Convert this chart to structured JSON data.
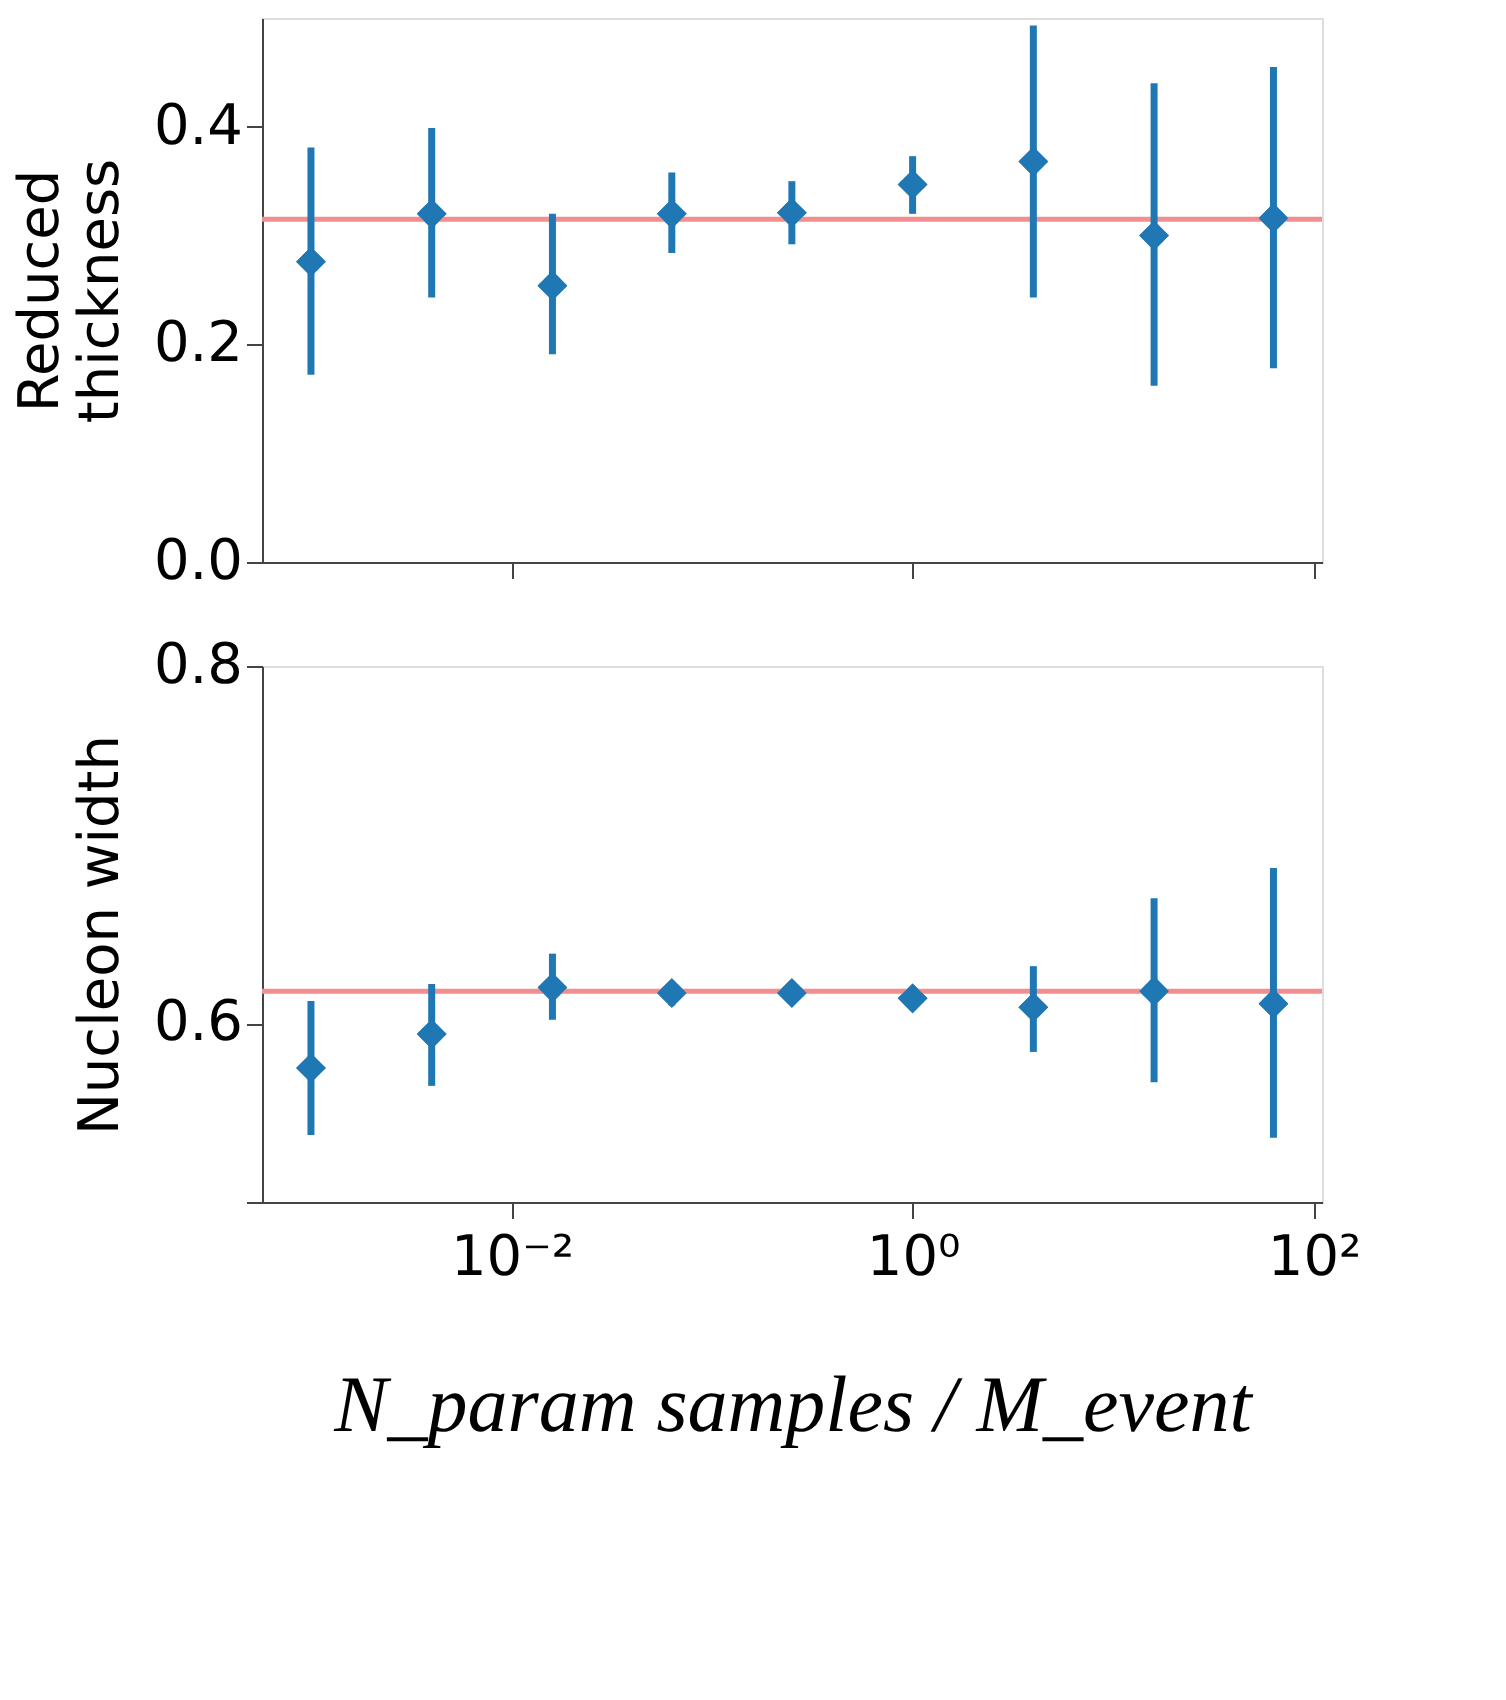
{
  "chart_data": [
    {
      "type": "scatter",
      "ylabel": "Reduced\nthickness",
      "x": [
        0.001,
        0.004,
        0.016,
        0.063,
        0.25,
        1,
        4,
        16,
        63
      ],
      "series": [
        {
          "color": "#1f77b4",
          "values": [
            0.276,
            0.32,
            0.254,
            0.32,
            0.321,
            0.347,
            0.368,
            0.3,
            0.316
          ],
          "errors": [
            [
              0.172,
              0.381
            ],
            [
              0.243,
              0.399
            ],
            [
              0.191,
              0.32
            ],
            [
              0.284,
              0.358
            ],
            [
              0.292,
              0.35
            ],
            [
              0.32,
              0.373
            ],
            [
              0.243,
              0.493
            ],
            [
              0.162,
              0.44
            ],
            [
              0.178,
              0.455
            ]
          ]
        }
      ],
      "marker": "diamond",
      "log": "x",
      "xlim": [
        0.00057,
        110
      ],
      "xticks": [
        {
          "value": 0.01,
          "label": null
        },
        {
          "value": 1,
          "label": null
        },
        {
          "value": 100,
          "label": null
        }
      ],
      "ylim": [
        0,
        0.5
      ],
      "yticks": [
        {
          "value": 0,
          "label": "0.0"
        },
        0.2,
        0.4
      ],
      "tick_labels": "y",
      "grid": false,
      "ref_lines": [
        {
          "axis": "y",
          "value": 0.315,
          "color": "#f28e8e"
        }
      ]
    },
    {
      "type": "scatter",
      "ylabel": "Nucleon width",
      "xlabel": "N_param samples / M_event",
      "x": [
        0.001,
        0.004,
        0.016,
        0.063,
        0.25,
        1,
        4,
        16,
        63
      ],
      "series": [
        {
          "color": "#1f77b4",
          "values": [
            0.575,
            0.594,
            0.62,
            0.617,
            0.617,
            0.614,
            0.609,
            0.618,
            0.611
          ],
          "errors": [
            [
              0.5375,
              0.6125
            ],
            [
              0.565,
              0.622
            ],
            [
              0.602,
              0.639
            ],
            [
              0.61,
              0.623
            ],
            [
              0.612,
              0.622
            ],
            [
              0.609,
              0.618
            ],
            [
              0.584,
              0.632
            ],
            [
              0.567,
              0.67
            ],
            [
              0.536,
              0.687
            ]
          ]
        }
      ],
      "marker": "diamond",
      "log": "x",
      "xlim": [
        0.00057,
        110
      ],
      "xticks": [
        {
          "value": 0.01,
          "label": "10⁻²"
        },
        {
          "value": 1,
          "label": "10⁰"
        },
        {
          "value": 100,
          "label": "10²"
        }
      ],
      "ylim": [
        0.5,
        0.8
      ],
      "yticks": [
        {
          "value": 0.5,
          "label": null
        },
        0.6,
        0.8
      ],
      "grid": false,
      "ref_lines": [
        {
          "axis": "y",
          "value": 0.618,
          "color": "#f28e8e"
        }
      ]
    }
  ]
}
